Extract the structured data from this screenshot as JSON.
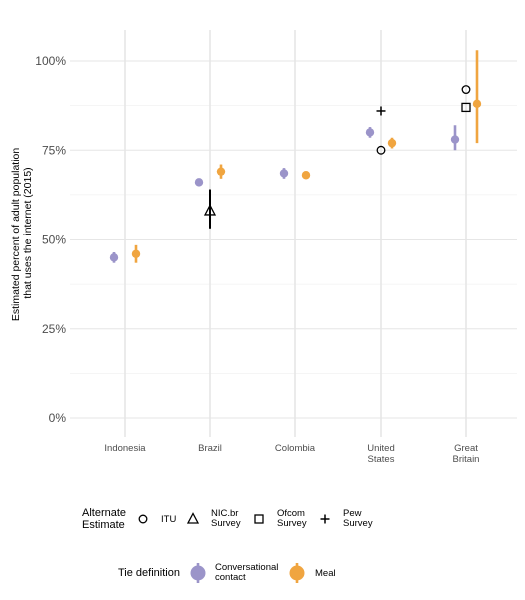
{
  "chart_data": {
    "type": "scatter",
    "title": "",
    "ylabel_line1": "Estimated percent of adult population",
    "ylabel_line2": "that uses the internet (2015)",
    "ylim": [
      0,
      1.08
    ],
    "yticks": [
      0,
      0.25,
      0.5,
      0.75,
      1.0
    ],
    "ytick_labels": [
      "0%",
      "25%",
      "50%",
      "75%",
      "100%"
    ],
    "categories": [
      {
        "label_lines": [
          "Indonesia"
        ]
      },
      {
        "label_lines": [
          "Brazil"
        ]
      },
      {
        "label_lines": [
          "Colombia"
        ]
      },
      {
        "label_lines": [
          "United",
          "States"
        ]
      },
      {
        "label_lines": [
          "Great",
          "Britain"
        ]
      }
    ],
    "grid": true,
    "series": [
      {
        "name_lines": [
          "Conversational",
          "contact"
        ],
        "color": "#9b94c9",
        "points": [
          {
            "category": "Indonesia",
            "y": 0.45,
            "low": 0.435,
            "high": 0.465
          },
          {
            "category": "Brazil",
            "y": 0.66,
            "low": 0.655,
            "high": 0.668
          },
          {
            "category": "Colombia",
            "y": 0.685,
            "low": 0.67,
            "high": 0.7
          },
          {
            "category": "United States",
            "y": 0.8,
            "low": 0.785,
            "high": 0.815
          },
          {
            "category": "Great Britain",
            "y": 0.78,
            "low": 0.75,
            "high": 0.82
          }
        ]
      },
      {
        "name_lines": [
          "Meal"
        ],
        "color": "#f0a540",
        "points": [
          {
            "category": "Indonesia",
            "y": 0.46,
            "low": 0.435,
            "high": 0.485
          },
          {
            "category": "Brazil",
            "y": 0.69,
            "low": 0.67,
            "high": 0.71
          },
          {
            "category": "Colombia",
            "y": 0.68,
            "low": 0.67,
            "high": 0.69
          },
          {
            "category": "United States",
            "y": 0.77,
            "low": 0.755,
            "high": 0.785
          },
          {
            "category": "Great Britain",
            "y": 0.88,
            "low": 0.77,
            "high": 1.03
          }
        ]
      }
    ],
    "alternate_estimates": [
      {
        "name_lines": [
          "ITU"
        ],
        "shape": "circle",
        "points": [
          {
            "category": "United States",
            "y": 0.75
          },
          {
            "category": "Great Britain",
            "y": 0.92
          }
        ]
      },
      {
        "name_lines": [
          "NIC.br",
          "Survey"
        ],
        "shape": "triangle",
        "points": [
          {
            "category": "Brazil",
            "y": 0.58,
            "low": 0.53,
            "high": 0.64
          }
        ]
      },
      {
        "name_lines": [
          "Ofcom",
          "Survey"
        ],
        "shape": "square",
        "points": [
          {
            "category": "Great Britain",
            "y": 0.87
          }
        ]
      },
      {
        "name_lines": [
          "Pew",
          "Survey"
        ],
        "shape": "plus",
        "points": [
          {
            "category": "United States",
            "y": 0.86
          }
        ]
      }
    ],
    "legend_alternate_title_lines": [
      "Alternate",
      "Estimate"
    ],
    "legend_tie_title": "Tie definition",
    "legend_placement": "bottom"
  }
}
